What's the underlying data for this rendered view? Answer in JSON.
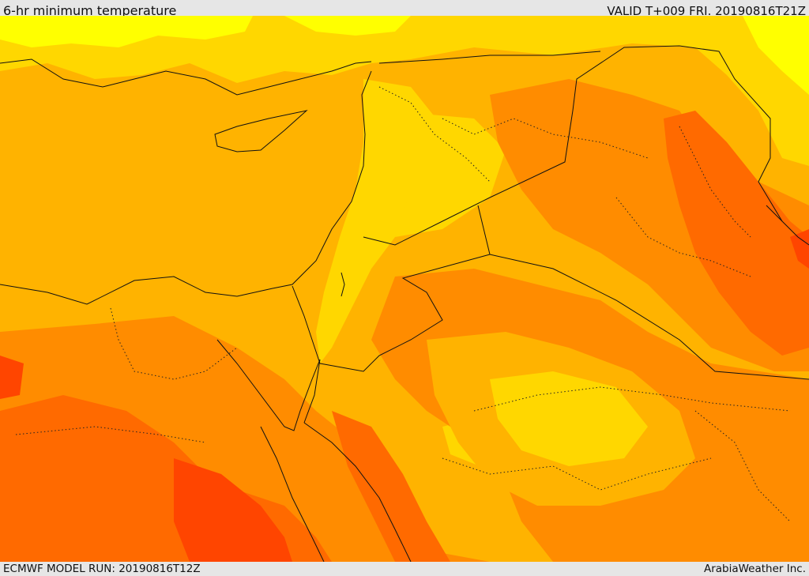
{
  "header": {
    "title": "6-hr minimum temperature",
    "valid": "VALID T+009 FRI. 20190816T21Z"
  },
  "footer": {
    "model_run": "ECMWF MODEL RUN: 20190816T12Z",
    "credit": "ArabiaWeather Inc."
  },
  "colors": {
    "yellow": "#ffff00",
    "gold": "#ffd700",
    "orange_light": "#ffb300",
    "orange": "#ff8c00",
    "orange_dark": "#ff6a00",
    "red_orange": "#ff4500",
    "border": "#111111"
  }
}
